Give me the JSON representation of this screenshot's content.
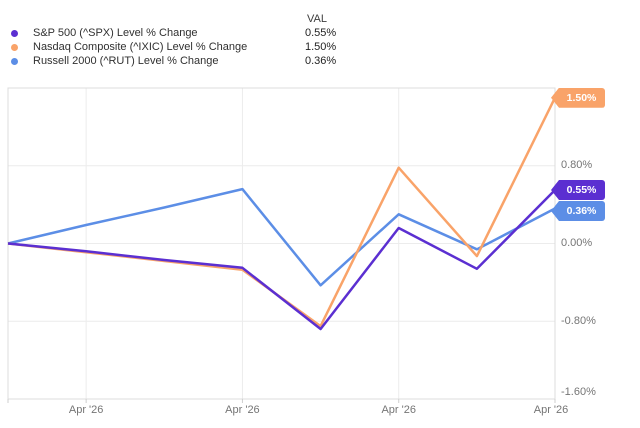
{
  "legend": {
    "val_header": "VAL",
    "items": [
      {
        "label": "S&P 500 (^SPX) Level % Change",
        "value": "0.55%",
        "color": "#5B2FD1"
      },
      {
        "label": "Nasdaq Composite (^IXIC) Level % Change",
        "value": "1.50%",
        "color": "#F9A369"
      },
      {
        "label": "Russell 2000 (^RUT) Level % Change",
        "value": "0.36%",
        "color": "#5C8EE6"
      }
    ]
  },
  "chart_data": {
    "type": "line",
    "title": "",
    "xlabel": "",
    "ylabel": "",
    "x": [
      0,
      1,
      2,
      3,
      4,
      5,
      6,
      7
    ],
    "series": [
      {
        "name": "S&P 500 (^SPX) Level % Change",
        "color": "#5B2FD1",
        "values": [
          0.0,
          -0.08,
          -0.17,
          -0.25,
          -0.88,
          0.16,
          -0.26,
          0.55
        ],
        "end_label": "0.55%"
      },
      {
        "name": "Nasdaq Composite (^IXIC) Level % Change",
        "color": "#F9A369",
        "values": [
          0.0,
          -0.09,
          -0.18,
          -0.27,
          -0.85,
          0.78,
          -0.13,
          1.5
        ],
        "end_label": "1.50%"
      },
      {
        "name": "Russell 2000 (^RUT) Level % Change",
        "color": "#5C8EE6",
        "values": [
          0.0,
          0.19,
          0.37,
          0.56,
          -0.43,
          0.3,
          -0.06,
          0.36
        ],
        "end_label": "0.36%"
      }
    ],
    "ylim": [
      -1.6,
      1.6
    ],
    "y_ticks": [
      {
        "value": 0.8,
        "label": "0.80%"
      },
      {
        "value": 0.0,
        "label": "0.00%"
      },
      {
        "value": -0.8,
        "label": "-0.80%"
      },
      {
        "value": -1.6,
        "label": "-1.60%"
      }
    ],
    "x_ticks": [
      {
        "pos": 1,
        "label": "Apr '26"
      },
      {
        "pos": 3,
        "label": "Apr '26"
      },
      {
        "pos": 5,
        "label": "Apr '26"
      },
      {
        "pos": 7,
        "label": "Apr '26"
      }
    ],
    "grid": true,
    "legend_position": "top-left"
  },
  "colors": {
    "gridline": "#ececec",
    "plot_border": "#dcdcdc",
    "axis_tick": "#cfcfcf",
    "axis_text": "#757575",
    "legend_text": "#303030"
  }
}
